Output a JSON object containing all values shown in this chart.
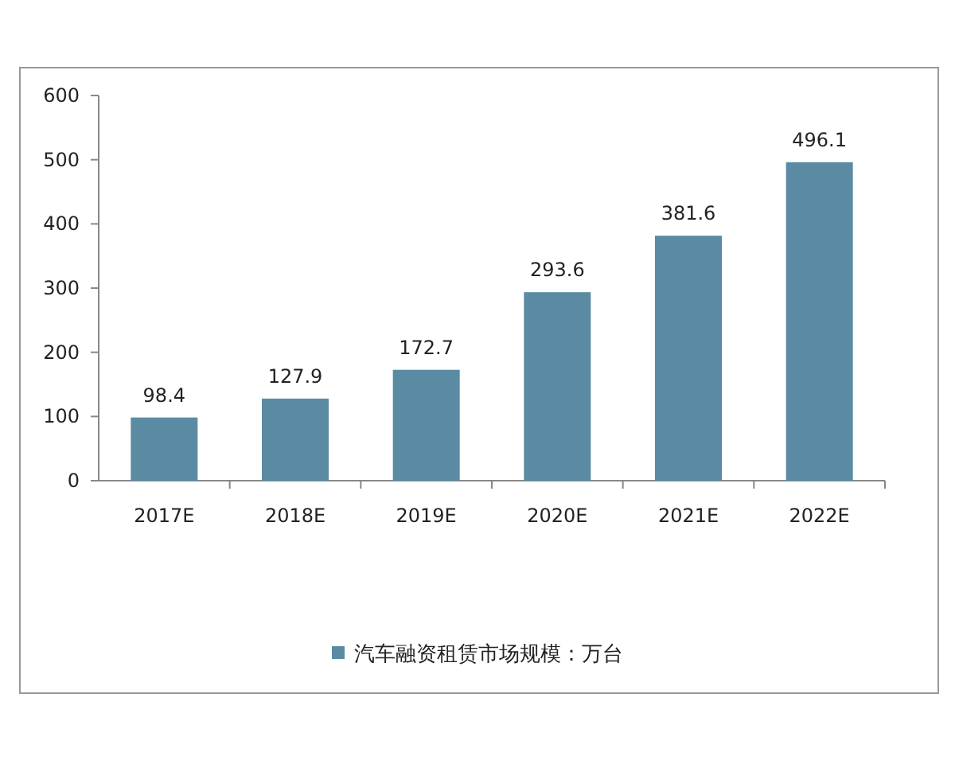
{
  "chart_data": {
    "type": "bar",
    "categories": [
      "2017E",
      "2018E",
      "2019E",
      "2020E",
      "2021E",
      "2022E"
    ],
    "series": [
      {
        "name": "汽车融资租赁市场规模：万台",
        "color": "#5b8ba3",
        "values": [
          98.4,
          127.9,
          172.7,
          293.6,
          381.6,
          496.1
        ]
      }
    ],
    "ylim": [
      0,
      600
    ],
    "yticks": [
      0,
      100,
      200,
      300,
      400,
      500,
      600
    ],
    "data_labels": true,
    "legend": "bottom"
  }
}
